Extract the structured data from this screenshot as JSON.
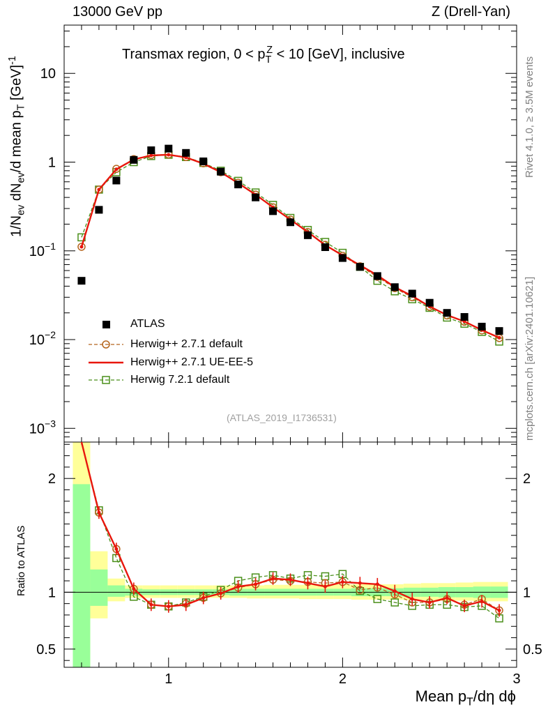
{
  "header": {
    "left": "13000 GeV pp",
    "right": "Z (Drell-Yan)"
  },
  "side": {
    "rivet": "Rivet 4.1.0, ≥ 3.5M events",
    "mcplots": "mcplots.cern.ch [arXiv:2401.10621]"
  },
  "chart_data": {
    "type": "scatter",
    "title": "Transmax region, 0 < p_T^Z < 10 [GeV], inclusive",
    "title_parts": {
      "pre": "Transmax region, 0 < p",
      "sub": "T",
      "sup": "Z",
      "post": " < 10 [GeV], inclusive"
    },
    "analysis_id": "(ATLAS_2019_I1736531)",
    "xlabel": "Mean p_T/dη dϕ",
    "xlabel_parts": {
      "pre": "Mean p",
      "sub": "T",
      "post": "/dη dϕ"
    },
    "ylabel_parts": {
      "a": "1/N",
      "a_sub": "ev",
      "b": " dN",
      "b_sub": "ev",
      "c": "/d mean p",
      "c_sub": "T",
      "d": " [GeV]",
      "d_sup": "-1"
    },
    "ratio_ylabel": "Ratio to ATLAS",
    "xlim": [
      0.4,
      3.0
    ],
    "x_ticks": [
      {
        "v": 1,
        "label": "1"
      },
      {
        "v": 2,
        "label": "2"
      },
      {
        "v": 3,
        "label": "3"
      }
    ],
    "ylim": [
      0.0007,
      35
    ],
    "y_scale": "log",
    "y_ticks": [
      {
        "v": 10,
        "base": "10",
        "exp": ""
      },
      {
        "v": 1,
        "base": "1",
        "exp": ""
      },
      {
        "v": 0.1,
        "base": "10",
        "exp": "−1"
      },
      {
        "v": 0.01,
        "base": "10",
        "exp": "−2"
      },
      {
        "v": 0.001,
        "base": "10",
        "exp": "−3"
      }
    ],
    "ratio_ylim": [
      0.34,
      2.32
    ],
    "ratio_y_ticks": [
      {
        "v": 0.5,
        "label": "0.5"
      },
      {
        "v": 1,
        "label": "1"
      },
      {
        "v": 2,
        "label": "2"
      }
    ],
    "x": [
      0.5,
      0.6,
      0.7,
      0.8,
      0.9,
      1.0,
      1.1,
      1.2,
      1.3,
      1.4,
      1.5,
      1.6,
      1.7,
      1.8,
      1.9,
      2.0,
      2.1,
      2.2,
      2.3,
      2.4,
      2.5,
      2.6,
      2.7,
      2.8,
      2.9
    ],
    "data": {
      "name": "ATLAS",
      "color": "#000000",
      "values": [
        0.046,
        0.29,
        0.62,
        1.06,
        1.36,
        1.42,
        1.27,
        1.02,
        0.78,
        0.56,
        0.4,
        0.28,
        0.21,
        0.15,
        0.11,
        0.083,
        0.066,
        0.052,
        0.039,
        0.033,
        0.026,
        0.02,
        0.018,
        0.014,
        0.0125
      ],
      "band_stat_x": [
        0.45,
        0.55,
        0.65,
        0.75,
        0.85,
        0.95,
        1.05,
        1.15,
        1.25,
        1.35,
        1.45,
        1.55,
        1.65,
        1.75,
        1.85,
        1.95,
        2.05,
        2.15,
        2.25,
        2.35,
        2.45,
        2.55,
        2.65,
        2.75,
        2.85,
        2.95
      ],
      "band_green": [
        [
          0.34,
          1.95
        ],
        [
          0.88,
          1.2
        ],
        [
          0.96,
          1.06
        ],
        [
          0.97,
          1.03
        ],
        [
          0.975,
          1.025
        ],
        [
          0.975,
          1.025
        ],
        [
          0.975,
          1.025
        ],
        [
          0.975,
          1.025
        ],
        [
          0.975,
          1.025
        ],
        [
          0.97,
          1.03
        ],
        [
          0.97,
          1.03
        ],
        [
          0.97,
          1.03
        ],
        [
          0.97,
          1.03
        ],
        [
          0.97,
          1.03
        ],
        [
          0.97,
          1.03
        ],
        [
          0.97,
          1.03
        ],
        [
          0.965,
          1.035
        ],
        [
          0.965,
          1.035
        ],
        [
          0.965,
          1.035
        ],
        [
          0.96,
          1.04
        ],
        [
          0.96,
          1.04
        ],
        [
          0.955,
          1.045
        ],
        [
          0.955,
          1.045
        ],
        [
          0.95,
          1.05
        ],
        [
          0.95,
          1.05
        ]
      ],
      "band_yellow": [
        [
          0.34,
          2.32
        ],
        [
          0.77,
          1.36
        ],
        [
          0.92,
          1.12
        ],
        [
          0.95,
          1.06
        ],
        [
          0.95,
          1.06
        ],
        [
          0.95,
          1.06
        ],
        [
          0.95,
          1.06
        ],
        [
          0.95,
          1.06
        ],
        [
          0.95,
          1.06
        ],
        [
          0.95,
          1.06
        ],
        [
          0.945,
          1.06
        ],
        [
          0.945,
          1.065
        ],
        [
          0.945,
          1.065
        ],
        [
          0.94,
          1.065
        ],
        [
          0.94,
          1.07
        ],
        [
          0.94,
          1.07
        ],
        [
          0.935,
          1.07
        ],
        [
          0.935,
          1.07
        ],
        [
          0.935,
          1.07
        ],
        [
          0.93,
          1.075
        ],
        [
          0.93,
          1.08
        ],
        [
          0.925,
          1.08
        ],
        [
          0.925,
          1.085
        ],
        [
          0.92,
          1.09
        ],
        [
          0.92,
          1.09
        ]
      ]
    },
    "series": [
      {
        "name": "Herwig++ 2.7.1 default",
        "color": "#b5651d",
        "marker": "circle",
        "dashed": true,
        "values": [
          0.111,
          0.49,
          0.84,
          1.08,
          1.2,
          1.22,
          1.14,
          0.97,
          0.77,
          0.585,
          0.43,
          0.31,
          0.225,
          0.163,
          0.117,
          0.088,
          0.067,
          0.051,
          0.038,
          0.03,
          0.0234,
          0.0187,
          0.0159,
          0.0127,
          0.0104
        ],
        "ratio": [
          2.4,
          1.7,
          1.38,
          1.03,
          0.89,
          0.875,
          0.9,
          0.95,
          0.99,
          1.04,
          1.07,
          1.11,
          1.1,
          1.09,
          1.08,
          1.09,
          1.02,
          1.04,
          0.98,
          0.91,
          0.91,
          0.94,
          0.89,
          0.94,
          0.84
        ]
      },
      {
        "name": "Herwig++ 2.7.1 UE-EE-5",
        "color": "#e8160c",
        "marker": "line",
        "dashed": false,
        "values": [
          0.111,
          0.49,
          0.83,
          1.07,
          1.19,
          1.21,
          1.13,
          0.96,
          0.77,
          0.58,
          0.43,
          0.31,
          0.225,
          0.163,
          0.116,
          0.089,
          0.069,
          0.053,
          0.039,
          0.031,
          0.0236,
          0.0189,
          0.016,
          0.0128,
          0.0105
        ],
        "ratio": [
          2.4,
          1.7,
          1.38,
          1.03,
          0.89,
          0.875,
          0.89,
          0.95,
          0.99,
          1.05,
          1.07,
          1.12,
          1.11,
          1.08,
          1.05,
          1.09,
          1.08,
          1.07,
          1.01,
          0.94,
          0.91,
          0.95,
          0.88,
          0.92,
          0.84
        ]
      },
      {
        "name": "Herwig 7.2.1 default",
        "color": "#4a8f1a",
        "marker": "square",
        "dashed": true,
        "values": [
          0.142,
          0.49,
          0.77,
          1.0,
          1.17,
          1.21,
          1.14,
          0.98,
          0.8,
          0.615,
          0.455,
          0.33,
          0.235,
          0.172,
          0.126,
          0.095,
          0.066,
          0.046,
          0.035,
          0.0285,
          0.0228,
          0.0177,
          0.0151,
          0.0122,
          0.0095
        ],
        "ratio": [
          3.0,
          1.72,
          1.3,
          0.96,
          0.89,
          0.875,
          0.91,
          0.96,
          1.02,
          1.1,
          1.13,
          1.15,
          1.12,
          1.15,
          1.14,
          1.16,
          1.01,
          0.94,
          0.91,
          0.88,
          0.89,
          0.89,
          0.87,
          0.88,
          0.77
        ]
      }
    ]
  }
}
